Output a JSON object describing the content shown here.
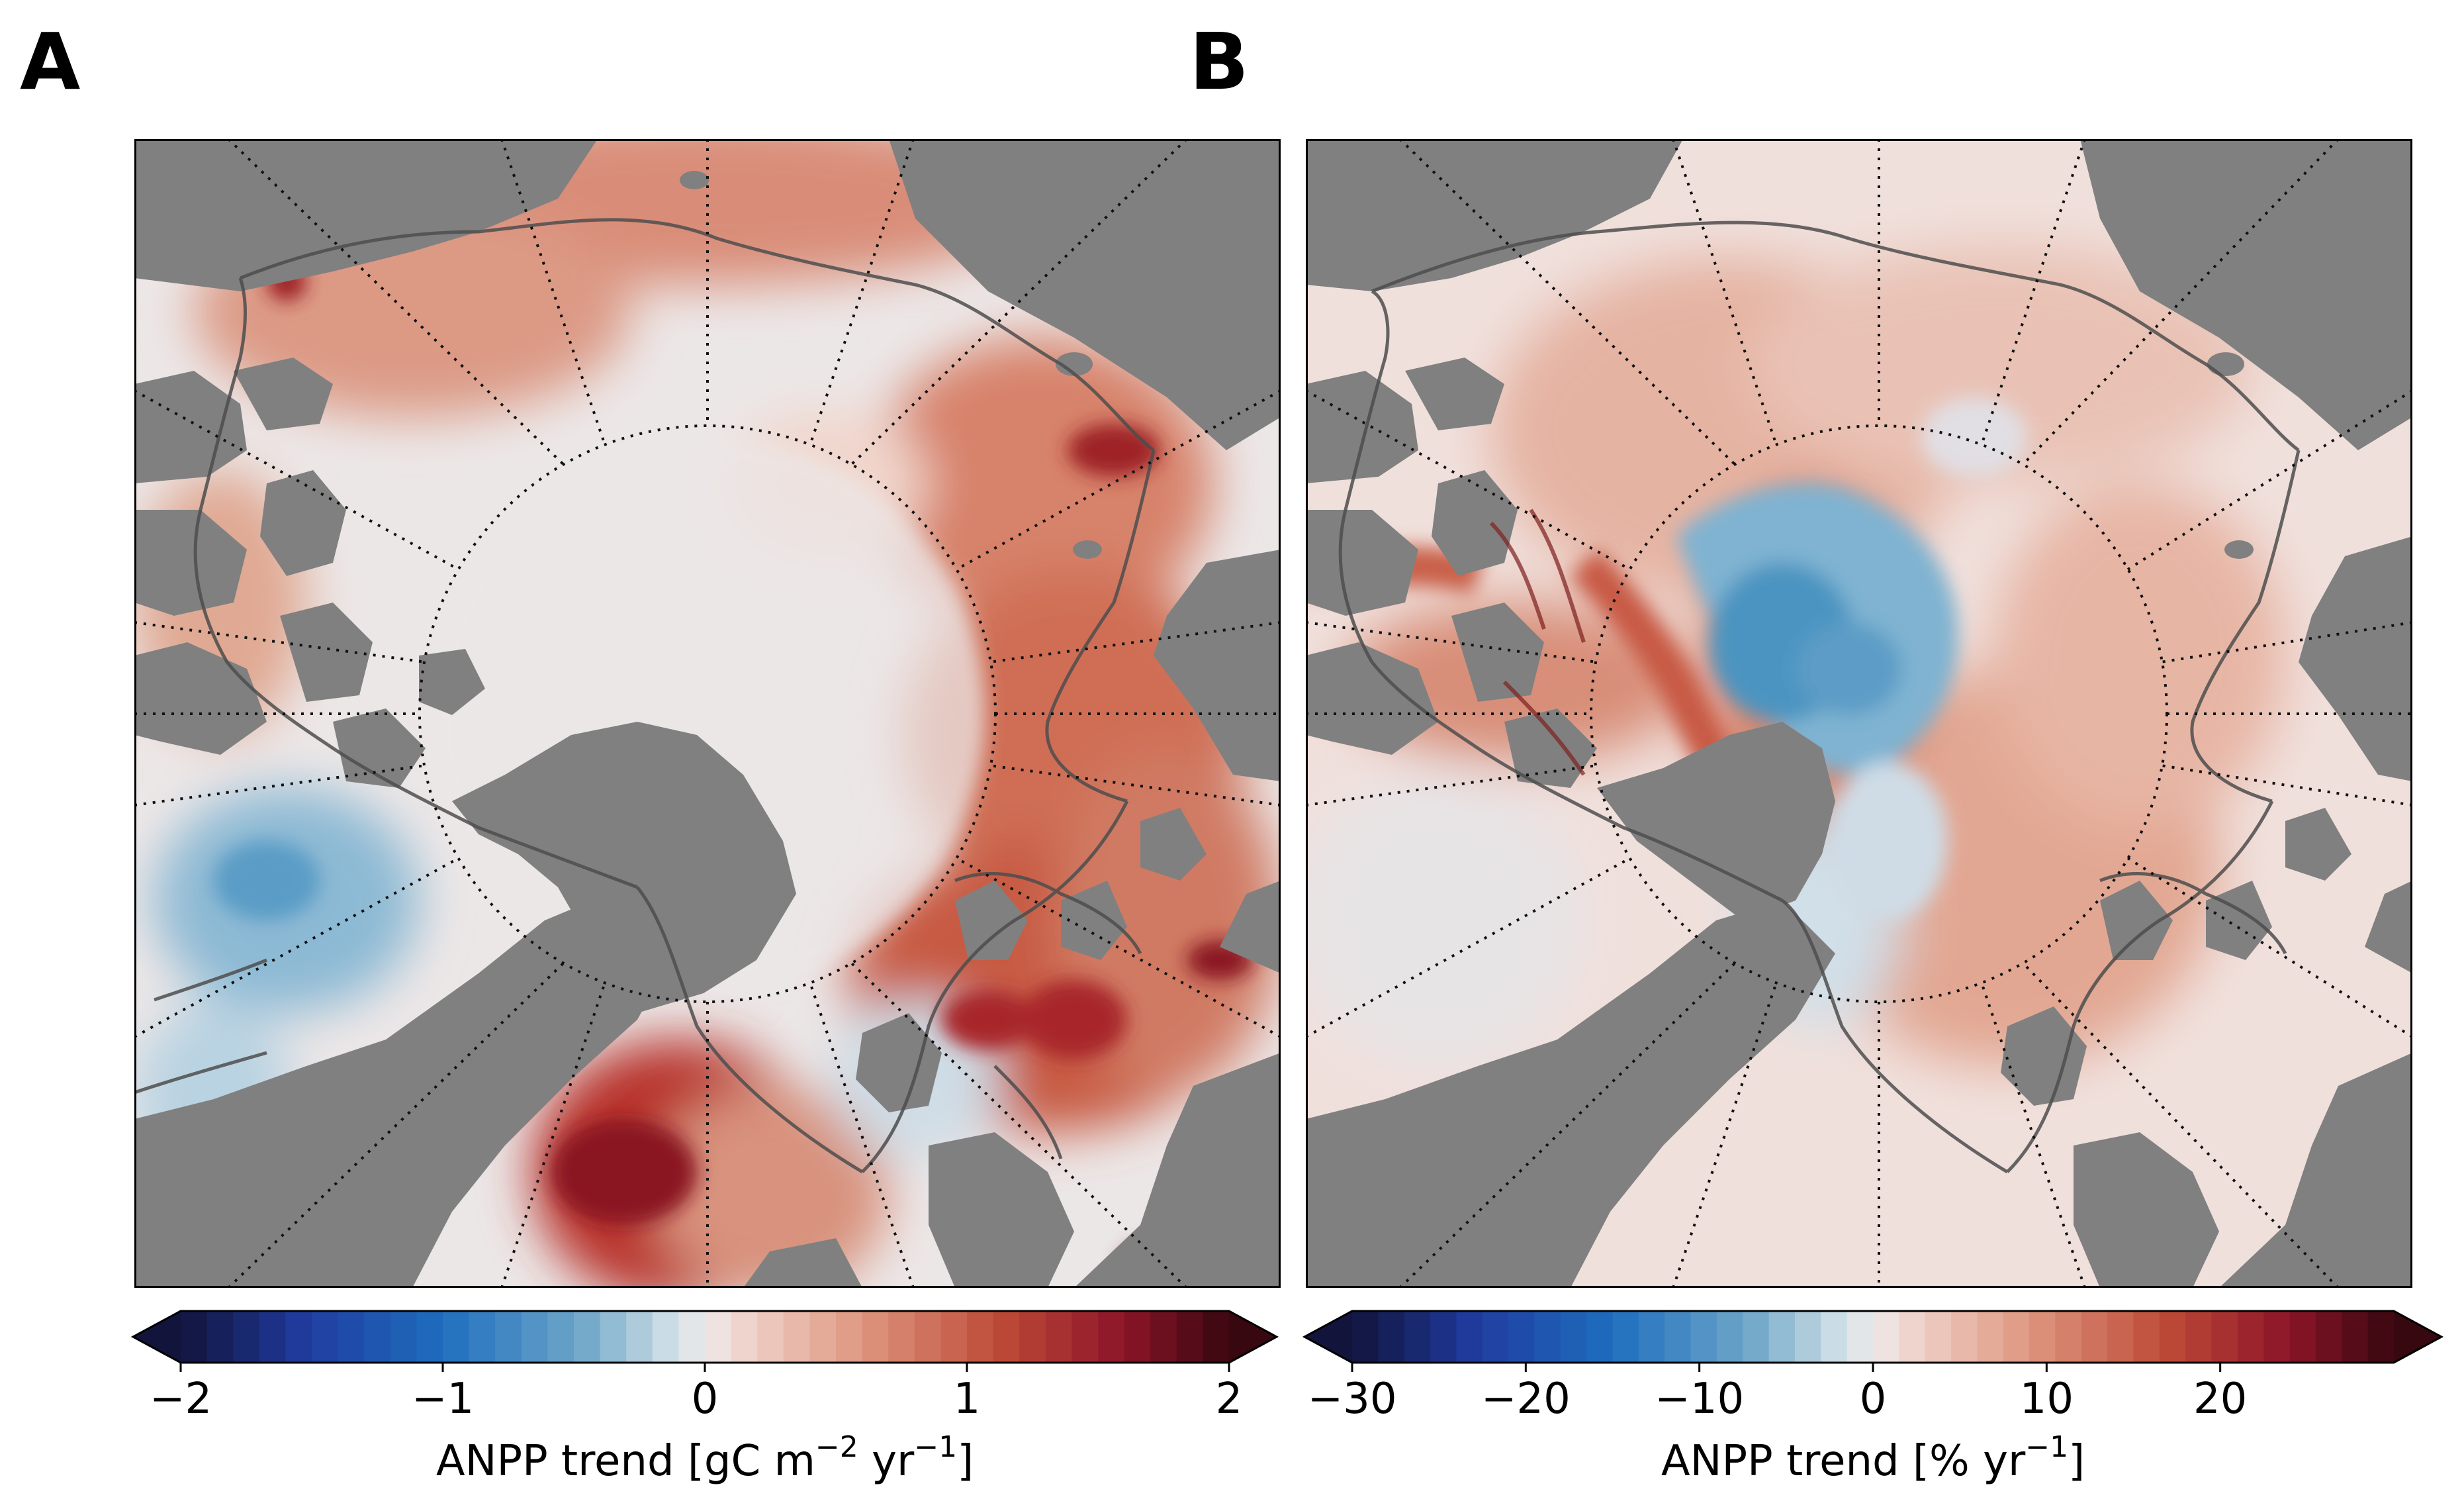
{
  "panels": [
    {
      "letter": "A",
      "colorbar": {
        "ticks": [
          "−2",
          "−1",
          "0",
          "1",
          "2"
        ],
        "tick_values": [
          -2,
          -1,
          0,
          1,
          2
        ],
        "range": [
          -2,
          2
        ],
        "label_main": "ANPP trend [gC m",
        "label_sup1": "−2",
        "label_mid": " yr",
        "label_sup2": "−1",
        "label_end": "]"
      }
    },
    {
      "letter": "B",
      "colorbar": {
        "ticks": [
          "−30",
          "−20",
          "−10",
          "0",
          "10",
          "20"
        ],
        "tick_values": [
          -30,
          -20,
          -10,
          0,
          10,
          20
        ],
        "range": [
          -30,
          30
        ],
        "label_main": "ANPP trend [% yr",
        "label_sup1": "−1",
        "label_end": "]"
      }
    }
  ],
  "colors": {
    "land": "#808080",
    "ocean_neutral": "#ece8e8",
    "positive_light": "#e7b8a6",
    "positive_mid": "#c5573f",
    "positive_dark": "#7d0f1e",
    "negative_light": "#bfd6e3",
    "negative_mid": "#4f93bf",
    "coast_contour": "#555555"
  }
}
